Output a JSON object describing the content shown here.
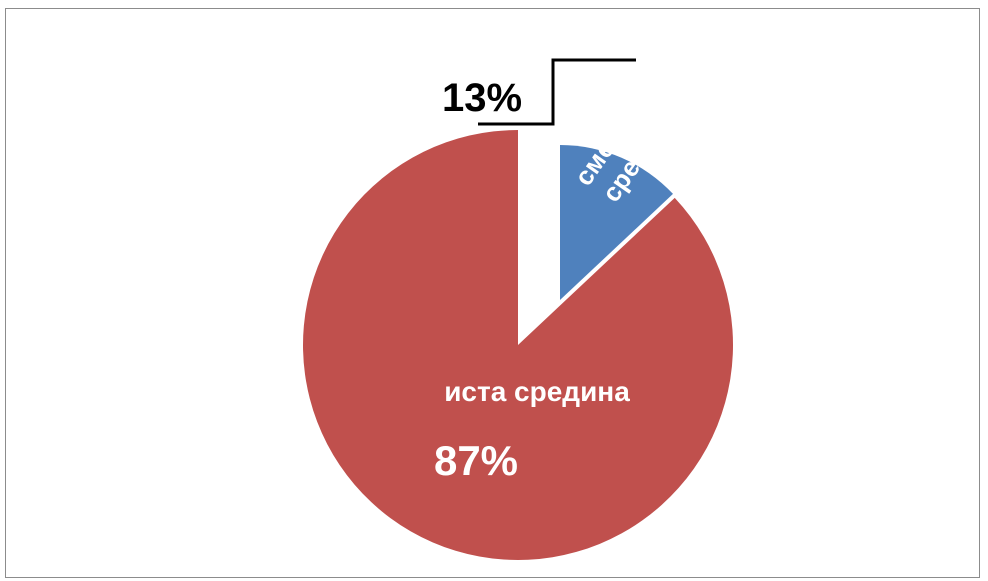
{
  "chart_data": {
    "type": "pie",
    "exploded": true,
    "slices": [
      {
        "label": "сменили средина",
        "label_lines": [
          "сменили",
          "средина"
        ],
        "value": 13,
        "value_label": "13%",
        "color": "#4f81bd"
      },
      {
        "label": "иста средина",
        "label_lines": [
          "иста средина"
        ],
        "value": 87,
        "value_label": "87%",
        "color": "#c0504d"
      }
    ],
    "leader_line_color": "#000000",
    "data_label_color": "#ffffff",
    "outside_label_color": "#000000",
    "border_color": "#8c8c8c"
  }
}
